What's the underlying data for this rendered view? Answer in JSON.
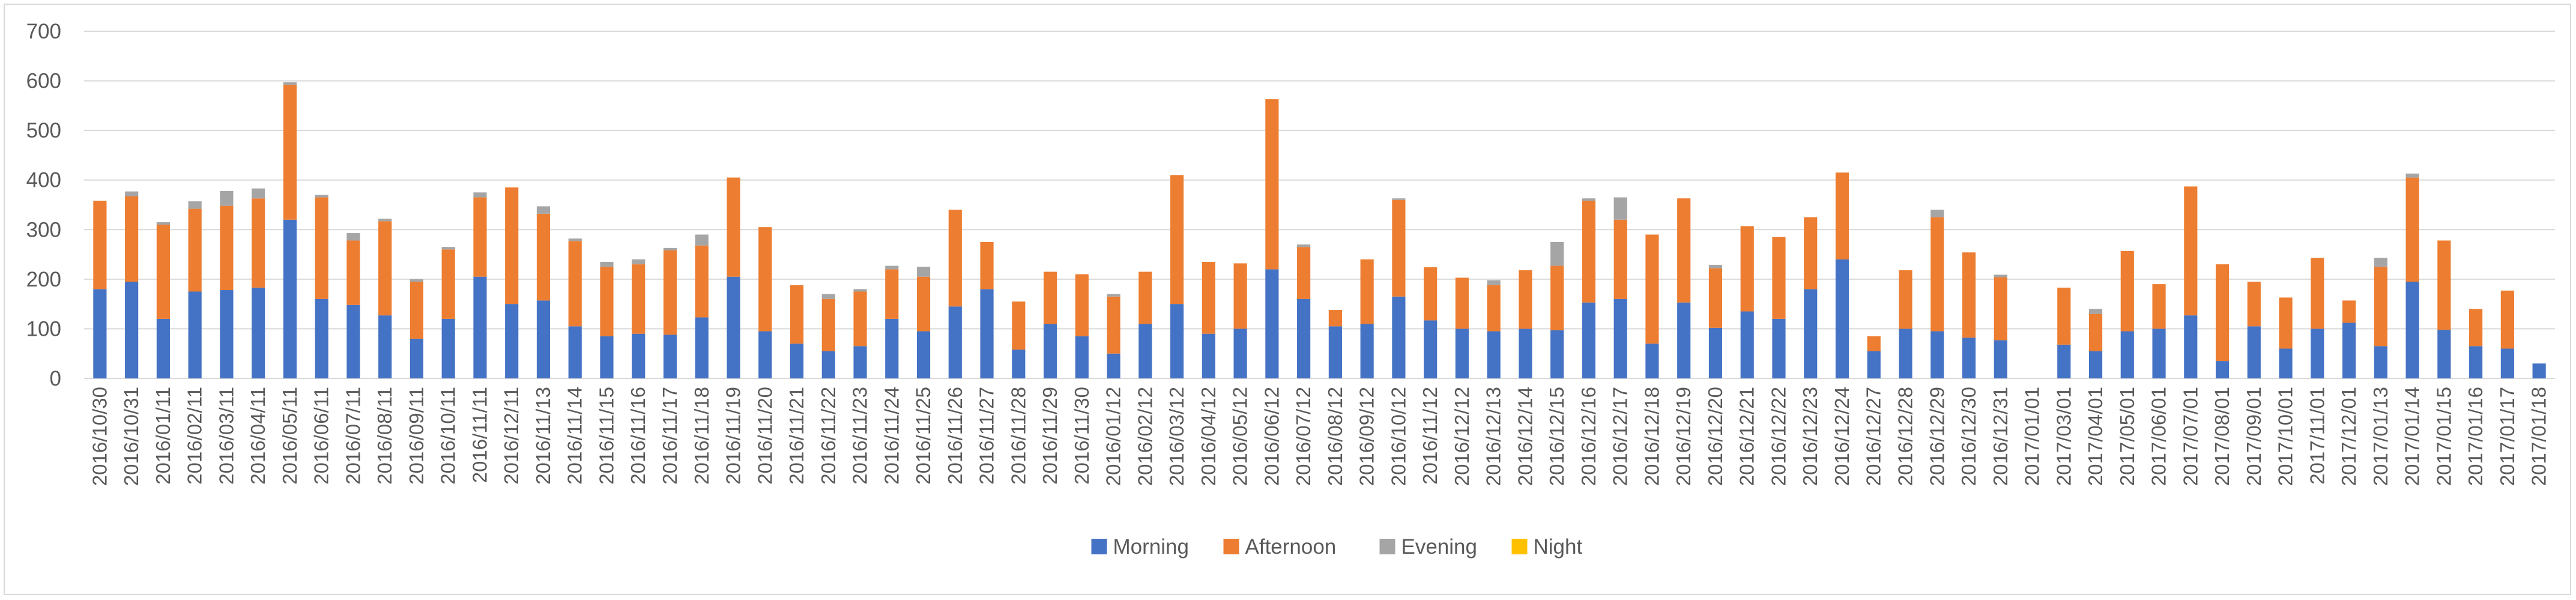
{
  "chart_data": {
    "type": "bar",
    "stacked": true,
    "title": "",
    "xlabel": "",
    "ylabel": "",
    "ylim": [
      0,
      700
    ],
    "yticks": [
      0,
      100,
      200,
      300,
      400,
      500,
      600,
      700
    ],
    "grid": "horizontal",
    "legend_position": "bottom",
    "categories": [
      "2016/10/30",
      "2016/10/31",
      "2016/01/11",
      "2016/02/11",
      "2016/03/11",
      "2016/04/11",
      "2016/05/11",
      "2016/06/11",
      "2016/07/11",
      "2016/08/11",
      "2016/09/11",
      "2016/10/11",
      "2016/11/11",
      "2016/12/11",
      "2016/11/13",
      "2016/11/14",
      "2016/11/15",
      "2016/11/16",
      "2016/11/17",
      "2016/11/18",
      "2016/11/19",
      "2016/11/20",
      "2016/11/21",
      "2016/11/22",
      "2016/11/23",
      "2016/11/24",
      "2016/11/25",
      "2016/11/26",
      "2016/11/27",
      "2016/11/28",
      "2016/11/29",
      "2016/11/30",
      "2016/01/12",
      "2016/02/12",
      "2016/03/12",
      "2016/04/12",
      "2016/05/12",
      "2016/06/12",
      "2016/07/12",
      "2016/08/12",
      "2016/09/12",
      "2016/10/12",
      "2016/11/12",
      "2016/12/12",
      "2016/12/13",
      "2016/12/14",
      "2016/12/15",
      "2016/12/16",
      "2016/12/17",
      "2016/12/18",
      "2016/12/19",
      "2016/12/20",
      "2016/12/21",
      "2016/12/22",
      "2016/12/23",
      "2016/12/24",
      "2016/12/27",
      "2016/12/28",
      "2016/12/29",
      "2016/12/30",
      "2016/12/31",
      "2017/01/01",
      "2017/03/01",
      "2017/04/01",
      "2017/05/01",
      "2017/06/01",
      "2017/07/01",
      "2017/08/01",
      "2017/09/01",
      "2017/10/01",
      "2017/11/01",
      "2017/12/01",
      "2017/01/13",
      "2017/01/14",
      "2017/01/15",
      "2017/01/16",
      "2017/01/17",
      "2017/01/18"
    ],
    "series": [
      {
        "name": "Morning",
        "color": "#4472C4",
        "values": [
          180,
          195,
          120,
          175,
          178,
          183,
          320,
          160,
          148,
          127,
          80,
          120,
          205,
          150,
          157,
          105,
          85,
          90,
          88,
          123,
          205,
          95,
          70,
          55,
          65,
          120,
          95,
          145,
          180,
          58,
          110,
          85,
          50,
          110,
          150,
          90,
          100,
          220,
          160,
          105,
          110,
          165,
          117,
          100,
          95,
          100,
          97,
          153,
          160,
          70,
          153,
          102,
          135,
          120,
          180,
          240,
          55,
          100,
          95,
          82,
          77,
          0,
          68,
          55,
          95,
          100,
          127,
          35,
          105,
          60,
          100,
          112,
          65,
          195,
          98,
          65,
          60,
          30
        ]
      },
      {
        "name": "Afternoon",
        "color": "#ED7D31",
        "values": [
          178,
          172,
          190,
          167,
          170,
          180,
          272,
          205,
          130,
          190,
          115,
          140,
          160,
          235,
          175,
          172,
          140,
          140,
          170,
          145,
          200,
          210,
          118,
          105,
          110,
          100,
          110,
          195,
          95,
          97,
          105,
          125,
          115,
          105,
          260,
          145,
          132,
          343,
          105,
          33,
          130,
          195,
          107,
          103,
          93,
          118,
          130,
          205,
          160,
          220,
          210,
          120,
          172,
          165,
          145,
          175,
          30,
          118,
          230,
          172,
          127,
          0,
          115,
          75,
          162,
          90,
          260,
          195,
          90,
          103,
          143,
          45,
          160,
          210,
          180,
          75,
          117,
          0
        ],
        "note_hidden": false
      },
      {
        "name": "Evening",
        "color": "#A5A5A5",
        "values": [
          0,
          10,
          5,
          15,
          30,
          20,
          5,
          5,
          15,
          5,
          5,
          5,
          10,
          0,
          15,
          5,
          10,
          10,
          5,
          22,
          0,
          0,
          0,
          10,
          5,
          7,
          20,
          0,
          0,
          0,
          0,
          0,
          5,
          0,
          0,
          0,
          0,
          0,
          5,
          0,
          0,
          3,
          0,
          0,
          10,
          0,
          48,
          5,
          45,
          0,
          0,
          7,
          0,
          0,
          0,
          0,
          0,
          0,
          15,
          0,
          5,
          0,
          0,
          10,
          0,
          0,
          0,
          0,
          0,
          0,
          0,
          0,
          18,
          8,
          0,
          0,
          0,
          0
        ]
      },
      {
        "name": "Night",
        "color": "#FFC000",
        "values": [
          0,
          0,
          0,
          0,
          0,
          0,
          0,
          0,
          0,
          0,
          0,
          0,
          0,
          0,
          0,
          0,
          0,
          0,
          0,
          0,
          0,
          0,
          0,
          0,
          0,
          0,
          0,
          0,
          0,
          0,
          0,
          0,
          0,
          0,
          0,
          0,
          0,
          0,
          0,
          0,
          0,
          0,
          0,
          0,
          0,
          0,
          0,
          0,
          0,
          0,
          0,
          0,
          0,
          0,
          0,
          0,
          0,
          0,
          0,
          0,
          0,
          0,
          0,
          0,
          0,
          0,
          0,
          0,
          0,
          0,
          0,
          0,
          0,
          0,
          0,
          0,
          0,
          0
        ]
      }
    ]
  }
}
